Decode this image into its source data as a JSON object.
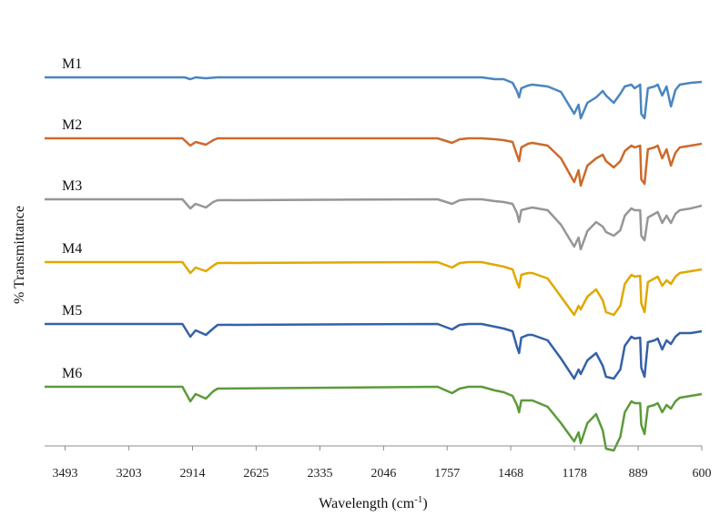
{
  "chart_data": {
    "type": "line",
    "title": "",
    "xlabel": "Wavelength (cm-1)",
    "xlabel_base": "Wavelength (cm",
    "xlabel_sup": "-1",
    "xlabel_close": ")",
    "ylabel": "% Transmittance",
    "xlim": [
      3586,
      600
    ],
    "x_reversed": true,
    "x_ticks": [
      3493,
      3203,
      2914,
      2625,
      2335,
      2046,
      1757,
      1468,
      1178,
      889,
      600
    ],
    "y_ticks_shown": false,
    "grid": false,
    "legend": "none",
    "series": [
      {
        "name": "M1",
        "color": "#4a86c0",
        "x": [
          3586,
          2950,
          2924,
          2900,
          2853,
          2800,
          1800,
          1735,
          1700,
          1660,
          1600,
          1540,
          1500,
          1460,
          1440,
          1430,
          1420,
          1390,
          1370,
          1300,
          1240,
          1180,
          1160,
          1150,
          1120,
          1080,
          1050,
          1035,
          1000,
          970,
          950,
          920,
          905,
          880,
          875,
          860,
          845,
          815,
          800,
          780,
          760,
          740,
          720,
          700,
          650,
          600
        ],
        "y": [
          0.0,
          0.0,
          -0.02,
          0.0,
          -0.01,
          0.0,
          0.0,
          0.0,
          0.0,
          0.0,
          0.0,
          -0.02,
          -0.02,
          -0.06,
          -0.15,
          -0.22,
          -0.12,
          -0.09,
          -0.08,
          -0.1,
          -0.16,
          -0.4,
          -0.3,
          -0.45,
          -0.28,
          -0.22,
          -0.15,
          -0.2,
          -0.28,
          -0.18,
          -0.1,
          -0.08,
          -0.12,
          -0.08,
          -0.4,
          -0.45,
          -0.12,
          -0.1,
          -0.08,
          -0.2,
          -0.1,
          -0.32,
          -0.14,
          -0.08,
          -0.06,
          -0.05
        ]
      },
      {
        "name": "M2",
        "color": "#cc6a2b",
        "x": [
          3586,
          2960,
          2924,
          2900,
          2853,
          2820,
          2800,
          1800,
          1735,
          1700,
          1660,
          1600,
          1540,
          1500,
          1460,
          1440,
          1430,
          1420,
          1390,
          1370,
          1300,
          1240,
          1180,
          1160,
          1150,
          1120,
          1080,
          1050,
          1035,
          1000,
          970,
          950,
          920,
          905,
          880,
          875,
          860,
          845,
          815,
          800,
          780,
          760,
          740,
          720,
          700,
          650,
          600
        ],
        "y": [
          0.0,
          0.0,
          -0.08,
          -0.04,
          -0.07,
          -0.02,
          0.0,
          0.0,
          -0.05,
          -0.01,
          0.0,
          0.0,
          -0.01,
          -0.02,
          -0.04,
          -0.18,
          -0.25,
          -0.1,
          -0.06,
          -0.05,
          -0.08,
          -0.22,
          -0.48,
          -0.35,
          -0.52,
          -0.3,
          -0.22,
          -0.18,
          -0.25,
          -0.32,
          -0.25,
          -0.14,
          -0.08,
          -0.1,
          -0.08,
          -0.45,
          -0.5,
          -0.12,
          -0.1,
          -0.08,
          -0.22,
          -0.12,
          -0.3,
          -0.16,
          -0.1,
          -0.08,
          -0.06
        ]
      },
      {
        "name": "M3",
        "color": "#969696",
        "x": [
          3586,
          2960,
          2924,
          2900,
          2853,
          2820,
          2800,
          1800,
          1735,
          1700,
          1660,
          1600,
          1540,
          1500,
          1460,
          1440,
          1430,
          1420,
          1390,
          1370,
          1300,
          1240,
          1180,
          1160,
          1150,
          1120,
          1080,
          1050,
          1035,
          1000,
          970,
          950,
          920,
          905,
          880,
          875,
          860,
          845,
          815,
          800,
          780,
          760,
          740,
          720,
          700,
          650,
          600
        ],
        "y": [
          0.0,
          0.0,
          -0.1,
          -0.05,
          -0.09,
          -0.03,
          -0.01,
          0.0,
          -0.05,
          -0.01,
          0.0,
          0.0,
          -0.02,
          -0.03,
          -0.05,
          -0.15,
          -0.25,
          -0.12,
          -0.1,
          -0.09,
          -0.12,
          -0.28,
          -0.52,
          -0.42,
          -0.55,
          -0.35,
          -0.25,
          -0.3,
          -0.36,
          -0.4,
          -0.34,
          -0.18,
          -0.1,
          -0.12,
          -0.12,
          -0.4,
          -0.45,
          -0.2,
          -0.16,
          -0.14,
          -0.26,
          -0.18,
          -0.26,
          -0.16,
          -0.12,
          -0.1,
          -0.07
        ]
      },
      {
        "name": "M4",
        "color": "#e1a800",
        "x": [
          3586,
          2960,
          2924,
          2900,
          2853,
          2820,
          2800,
          1800,
          1735,
          1700,
          1660,
          1600,
          1540,
          1500,
          1460,
          1440,
          1430,
          1420,
          1390,
          1370,
          1300,
          1240,
          1180,
          1160,
          1150,
          1120,
          1080,
          1050,
          1035,
          1000,
          970,
          950,
          920,
          905,
          880,
          875,
          860,
          845,
          815,
          800,
          780,
          760,
          740,
          720,
          700,
          650,
          600
        ],
        "y": [
          0.0,
          0.0,
          -0.12,
          -0.06,
          -0.1,
          -0.04,
          -0.01,
          0.0,
          -0.06,
          -0.01,
          0.0,
          0.0,
          -0.03,
          -0.05,
          -0.08,
          -0.22,
          -0.28,
          -0.14,
          -0.12,
          -0.12,
          -0.18,
          -0.38,
          -0.58,
          -0.48,
          -0.52,
          -0.38,
          -0.3,
          -0.42,
          -0.55,
          -0.58,
          -0.48,
          -0.24,
          -0.14,
          -0.16,
          -0.15,
          -0.45,
          -0.55,
          -0.22,
          -0.18,
          -0.16,
          -0.26,
          -0.2,
          -0.24,
          -0.16,
          -0.12,
          -0.1,
          -0.08
        ]
      },
      {
        "name": "M5",
        "color": "#3561a8",
        "x": [
          3586,
          2960,
          2924,
          2900,
          2853,
          2820,
          2800,
          1800,
          1735,
          1700,
          1660,
          1600,
          1540,
          1500,
          1460,
          1440,
          1430,
          1420,
          1390,
          1370,
          1300,
          1240,
          1180,
          1160,
          1150,
          1120,
          1080,
          1050,
          1035,
          1000,
          970,
          950,
          920,
          905,
          880,
          875,
          860,
          845,
          815,
          800,
          780,
          760,
          740,
          720,
          700,
          650,
          600
        ],
        "y": [
          0.0,
          0.0,
          -0.14,
          -0.07,
          -0.12,
          -0.05,
          -0.01,
          0.0,
          -0.06,
          -0.01,
          0.0,
          0.0,
          -0.03,
          -0.05,
          -0.08,
          -0.25,
          -0.32,
          -0.15,
          -0.12,
          -0.12,
          -0.18,
          -0.38,
          -0.6,
          -0.5,
          -0.55,
          -0.4,
          -0.32,
          -0.46,
          -0.58,
          -0.6,
          -0.5,
          -0.24,
          -0.14,
          -0.16,
          -0.15,
          -0.48,
          -0.58,
          -0.2,
          -0.18,
          -0.16,
          -0.28,
          -0.18,
          -0.22,
          -0.14,
          -0.1,
          -0.1,
          -0.08
        ]
      },
      {
        "name": "M6",
        "color": "#5d9a3b",
        "x": [
          3586,
          2960,
          2924,
          2900,
          2853,
          2820,
          2800,
          1800,
          1735,
          1700,
          1660,
          1600,
          1540,
          1500,
          1460,
          1440,
          1430,
          1420,
          1390,
          1370,
          1300,
          1240,
          1180,
          1160,
          1150,
          1120,
          1080,
          1050,
          1035,
          1000,
          970,
          950,
          920,
          905,
          880,
          875,
          860,
          845,
          815,
          800,
          780,
          760,
          740,
          720,
          700,
          650,
          600
        ],
        "y": [
          0.0,
          0.0,
          -0.16,
          -0.08,
          -0.13,
          -0.05,
          -0.02,
          0.0,
          -0.07,
          -0.02,
          0.0,
          0.0,
          -0.04,
          -0.06,
          -0.1,
          -0.2,
          -0.28,
          -0.15,
          -0.15,
          -0.15,
          -0.22,
          -0.4,
          -0.6,
          -0.5,
          -0.62,
          -0.4,
          -0.3,
          -0.48,
          -0.68,
          -0.7,
          -0.55,
          -0.28,
          -0.16,
          -0.18,
          -0.18,
          -0.42,
          -0.52,
          -0.22,
          -0.2,
          -0.18,
          -0.28,
          -0.2,
          -0.24,
          -0.16,
          -0.12,
          -0.1,
          -0.08
        ]
      }
    ]
  }
}
